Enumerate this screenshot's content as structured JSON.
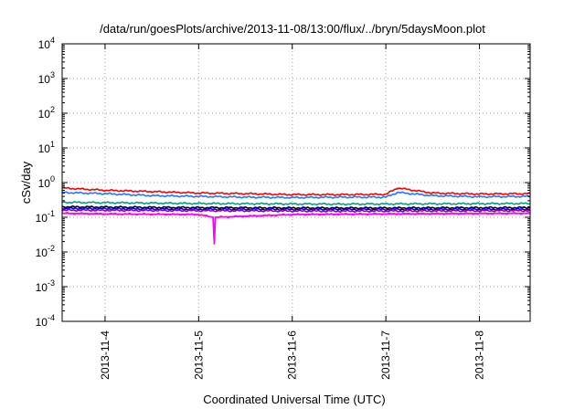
{
  "chart_data": {
    "type": "line",
    "title": "/data/run/goesPlots/archive/2013-11-08/13:00/flux/../bryn/5daysMoon.plot",
    "xlabel": "Coordinated Universal Time (UTC)",
    "ylabel": "cSv/day",
    "yscale": "log",
    "ylim": [
      0.0001,
      10000
    ],
    "ytick_values": [
      0.0001,
      0.001,
      0.01,
      0.1,
      1,
      10,
      100,
      1000,
      10000
    ],
    "ytick_labels": [
      {
        "base": "10",
        "exp": "-4"
      },
      {
        "base": "10",
        "exp": "-3"
      },
      {
        "base": "10",
        "exp": "-2"
      },
      {
        "base": "10",
        "exp": "-1"
      },
      {
        "base": "10",
        "exp": "0"
      },
      {
        "base": "10",
        "exp": "1"
      },
      {
        "base": "10",
        "exp": "2"
      },
      {
        "base": "10",
        "exp": "3"
      },
      {
        "base": "10",
        "exp": "4"
      }
    ],
    "xlim": [
      "2013-11-03 13:00",
      "2013-11-08 13:00"
    ],
    "xticks": [
      "2013-11-4",
      "2013-11-5",
      "2013-11-6",
      "2013-11-7",
      "2013-11-8"
    ],
    "grid": true,
    "series": [
      {
        "color": "#ff0000",
        "x": [
          "2013-11-03 13:00",
          "2013-11-04 00:00",
          "2013-11-04 12:00",
          "2013-11-05 00:00",
          "2013-11-05 12:00",
          "2013-11-06 00:00",
          "2013-11-06 12:00",
          "2013-11-07 00:00",
          "2013-11-07 03:00",
          "2013-11-07 12:00",
          "2013-11-08 00:00",
          "2013-11-08 13:00"
        ],
        "values": [
          0.7,
          0.6,
          0.55,
          0.5,
          0.48,
          0.45,
          0.45,
          0.46,
          0.7,
          0.5,
          0.47,
          0.48
        ]
      },
      {
        "color": "#1e78ff",
        "x": [
          "2013-11-03 13:00",
          "2013-11-04 00:00",
          "2013-11-04 12:00",
          "2013-11-05 00:00",
          "2013-11-05 12:00",
          "2013-11-06 00:00",
          "2013-11-06 12:00",
          "2013-11-07 00:00",
          "2013-11-07 03:00",
          "2013-11-07 12:00",
          "2013-11-08 00:00",
          "2013-11-08 13:00"
        ],
        "values": [
          0.52,
          0.48,
          0.42,
          0.4,
          0.38,
          0.37,
          0.38,
          0.38,
          0.52,
          0.42,
          0.39,
          0.4
        ]
      },
      {
        "color": "#00a080",
        "x": [
          "2013-11-03 13:00",
          "2013-11-05 00:00",
          "2013-11-06 12:00",
          "2013-11-08 13:00"
        ],
        "values": [
          0.27,
          0.25,
          0.24,
          0.25
        ]
      },
      {
        "color": "#000000",
        "x": [
          "2013-11-03 13:00",
          "2013-11-05 00:00",
          "2013-11-06 12:00",
          "2013-11-08 13:00"
        ],
        "values": [
          0.2,
          0.19,
          0.185,
          0.19
        ]
      },
      {
        "color": "#0000ff",
        "x": [
          "2013-11-03 13:00",
          "2013-11-05 00:00",
          "2013-11-06 12:00",
          "2013-11-08 13:00"
        ],
        "values": [
          0.18,
          0.17,
          0.168,
          0.17
        ]
      },
      {
        "color": "#a000a0",
        "x": [
          "2013-11-03 13:00",
          "2013-11-05 00:00",
          "2013-11-06 12:00",
          "2013-11-08 13:00"
        ],
        "values": [
          0.16,
          0.155,
          0.15,
          0.155
        ]
      },
      {
        "color": "#ff00ff",
        "x": [
          "2013-11-03 13:00",
          "2013-11-04 00:00",
          "2013-11-05 00:00",
          "2013-11-05 03:45",
          "2013-11-05 04:00",
          "2013-11-05 04:15",
          "2013-11-06 00:00",
          "2013-11-07 00:00",
          "2013-11-08 13:00"
        ],
        "values": [
          0.13,
          0.125,
          0.12,
          0.1,
          0.018,
          0.1,
          0.12,
          0.125,
          0.13
        ]
      }
    ]
  }
}
